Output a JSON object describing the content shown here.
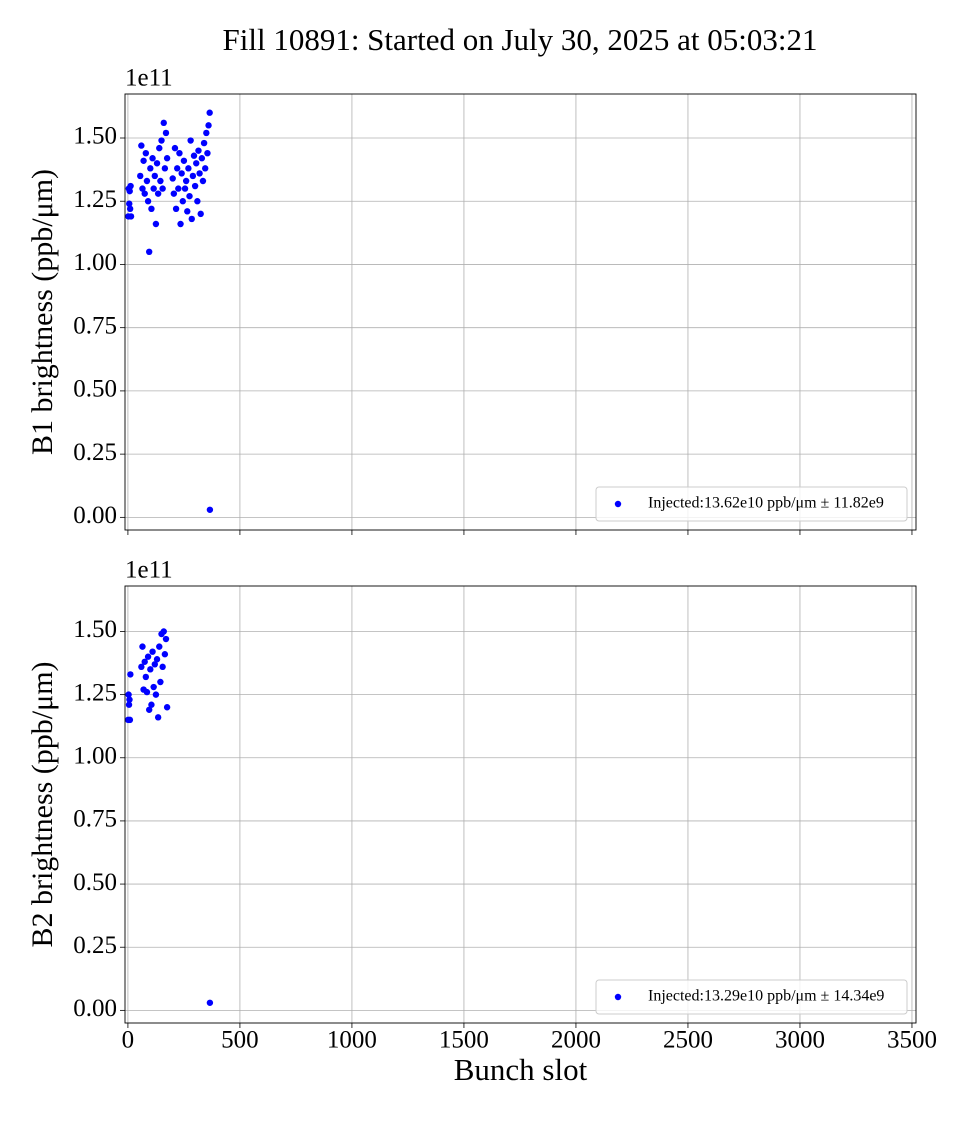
{
  "title": "Fill 10891: Started on July 30, 2025 at 05:03:21",
  "chart_data": [
    {
      "type": "scatter",
      "ylabel": "B1 brightness (ppb/μm)",
      "offset_label": "1e11",
      "xlim": [
        -13,
        3518
      ],
      "ylim": [
        -0.05,
        1.674
      ],
      "xticks": [
        0,
        500,
        1000,
        1500,
        2000,
        2500,
        3000,
        3500
      ],
      "yticks": [
        {
          "value": 0,
          "label": "0.00"
        },
        {
          "value": 0.25,
          "label": "0.25"
        },
        {
          "value": 0.5,
          "label": "0.50"
        },
        {
          "value": 0.75,
          "label": "0.75"
        },
        {
          "value": 1,
          "label": "1.00"
        },
        {
          "value": 1.25,
          "label": "1.25"
        },
        {
          "value": 1.5,
          "label": "1.50"
        }
      ],
      "grid": true,
      "legend": "lower right",
      "series": [
        {
          "name": "Injected:13.62e10 ppb/μm ± 11.82e9",
          "color": "#0000ff",
          "x": [
            2,
            4,
            6,
            8,
            10,
            12,
            14,
            55,
            60,
            65,
            70,
            75,
            80,
            85,
            90,
            95,
            100,
            105,
            110,
            115,
            120,
            125,
            130,
            135,
            140,
            145,
            150,
            155,
            160,
            165,
            170,
            175,
            200,
            205,
            210,
            215,
            220,
            225,
            230,
            235,
            240,
            245,
            250,
            255,
            260,
            265,
            270,
            275,
            280,
            285,
            290,
            295,
            300,
            305,
            310,
            315,
            320,
            325,
            330,
            335,
            340,
            345,
            350,
            355,
            360,
            365,
            366
          ],
          "values": [
            1.19,
            1.3,
            1.24,
            1.29,
            1.22,
            1.31,
            1.19,
            1.35,
            1.47,
            1.3,
            1.41,
            1.28,
            1.44,
            1.33,
            1.25,
            1.05,
            1.38,
            1.22,
            1.42,
            1.3,
            1.35,
            1.16,
            1.4,
            1.28,
            1.46,
            1.33,
            1.49,
            1.3,
            1.56,
            1.38,
            1.52,
            1.42,
            1.34,
            1.28,
            1.46,
            1.22,
            1.38,
            1.3,
            1.44,
            1.16,
            1.36,
            1.25,
            1.41,
            1.3,
            1.33,
            1.21,
            1.38,
            1.27,
            1.49,
            1.18,
            1.35,
            1.43,
            1.31,
            1.4,
            1.25,
            1.45,
            1.36,
            1.2,
            1.42,
            1.33,
            1.48,
            1.38,
            1.52,
            1.44,
            1.55,
            1.6,
            0.03
          ]
        }
      ]
    },
    {
      "type": "scatter",
      "ylabel": "B2 brightness (ppb/μm)",
      "xlabel": "Bunch slot",
      "offset_label": "1e11",
      "xlim": [
        -13,
        3518
      ],
      "ylim": [
        -0.05,
        1.68
      ],
      "xticks": [
        0,
        500,
        1000,
        1500,
        2000,
        2500,
        3000,
        3500
      ],
      "yticks": [
        {
          "value": 0,
          "label": "0.00"
        },
        {
          "value": 0.25,
          "label": "0.25"
        },
        {
          "value": 0.5,
          "label": "0.50"
        },
        {
          "value": 0.75,
          "label": "0.75"
        },
        {
          "value": 1,
          "label": "1.00"
        },
        {
          "value": 1.25,
          "label": "1.25"
        },
        {
          "value": 1.5,
          "label": "1.50"
        }
      ],
      "grid": true,
      "legend": "lower right",
      "series": [
        {
          "name": "Injected:13.29e10 ppb/μm ± 14.34e9",
          "color": "#0000ff",
          "x": [
            1,
            3,
            5,
            7,
            9,
            11,
            60,
            65,
            70,
            75,
            80,
            85,
            90,
            95,
            100,
            105,
            110,
            115,
            120,
            125,
            130,
            135,
            140,
            145,
            150,
            155,
            160,
            165,
            170,
            175,
            366
          ],
          "values": [
            1.15,
            1.25,
            1.21,
            1.23,
            1.15,
            1.33,
            1.36,
            1.44,
            1.27,
            1.38,
            1.32,
            1.26,
            1.4,
            1.19,
            1.35,
            1.21,
            1.42,
            1.28,
            1.37,
            1.25,
            1.39,
            1.16,
            1.44,
            1.3,
            1.49,
            1.36,
            1.5,
            1.41,
            1.47,
            1.2,
            0.03
          ]
        }
      ]
    }
  ]
}
